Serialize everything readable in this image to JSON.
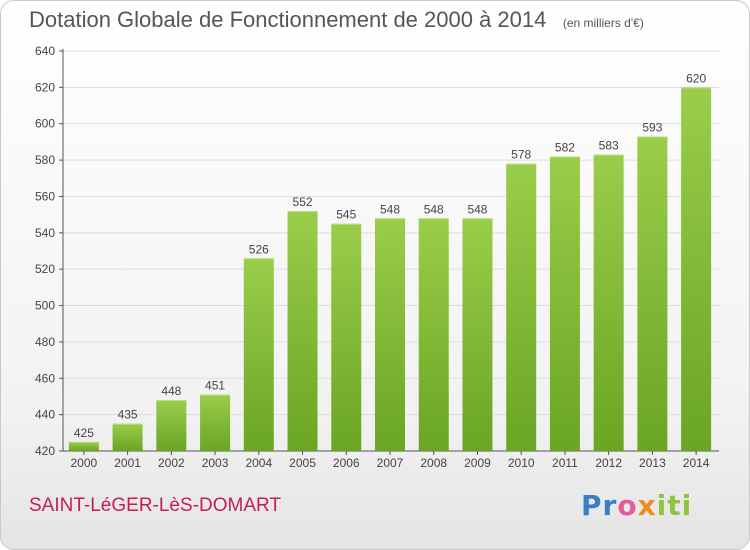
{
  "header": {
    "title": "Dotation Globale de Fonctionnement de 2000 à 2014",
    "subtitle": "(en milliers d'€)"
  },
  "footer": {
    "commune": "SAINT-LéGER-LèS-DOMART",
    "logo": "Proxiti"
  },
  "colors": {
    "bar_top": "#9acd4a",
    "bar_bottom": "#6aa524",
    "grid": "#dddddd",
    "title": "#555555",
    "commune": "#c41f4f"
  },
  "chart_data": {
    "type": "bar",
    "title": "Dotation Globale de Fonctionnement de 2000 à 2014",
    "subtitle": "(en milliers d'€)",
    "xlabel": "",
    "ylabel": "",
    "categories": [
      "2000",
      "2001",
      "2002",
      "2003",
      "2004",
      "2005",
      "2006",
      "2007",
      "2008",
      "2009",
      "2010",
      "2011",
      "2012",
      "2013",
      "2014"
    ],
    "values": [
      425,
      435,
      448,
      451,
      526,
      552,
      545,
      548,
      548,
      548,
      578,
      582,
      583,
      593,
      620
    ],
    "ylim": [
      420,
      640
    ],
    "yticks": [
      420,
      440,
      460,
      480,
      500,
      520,
      540,
      560,
      580,
      600,
      620,
      640
    ],
    "grid": true,
    "legend": "none"
  }
}
